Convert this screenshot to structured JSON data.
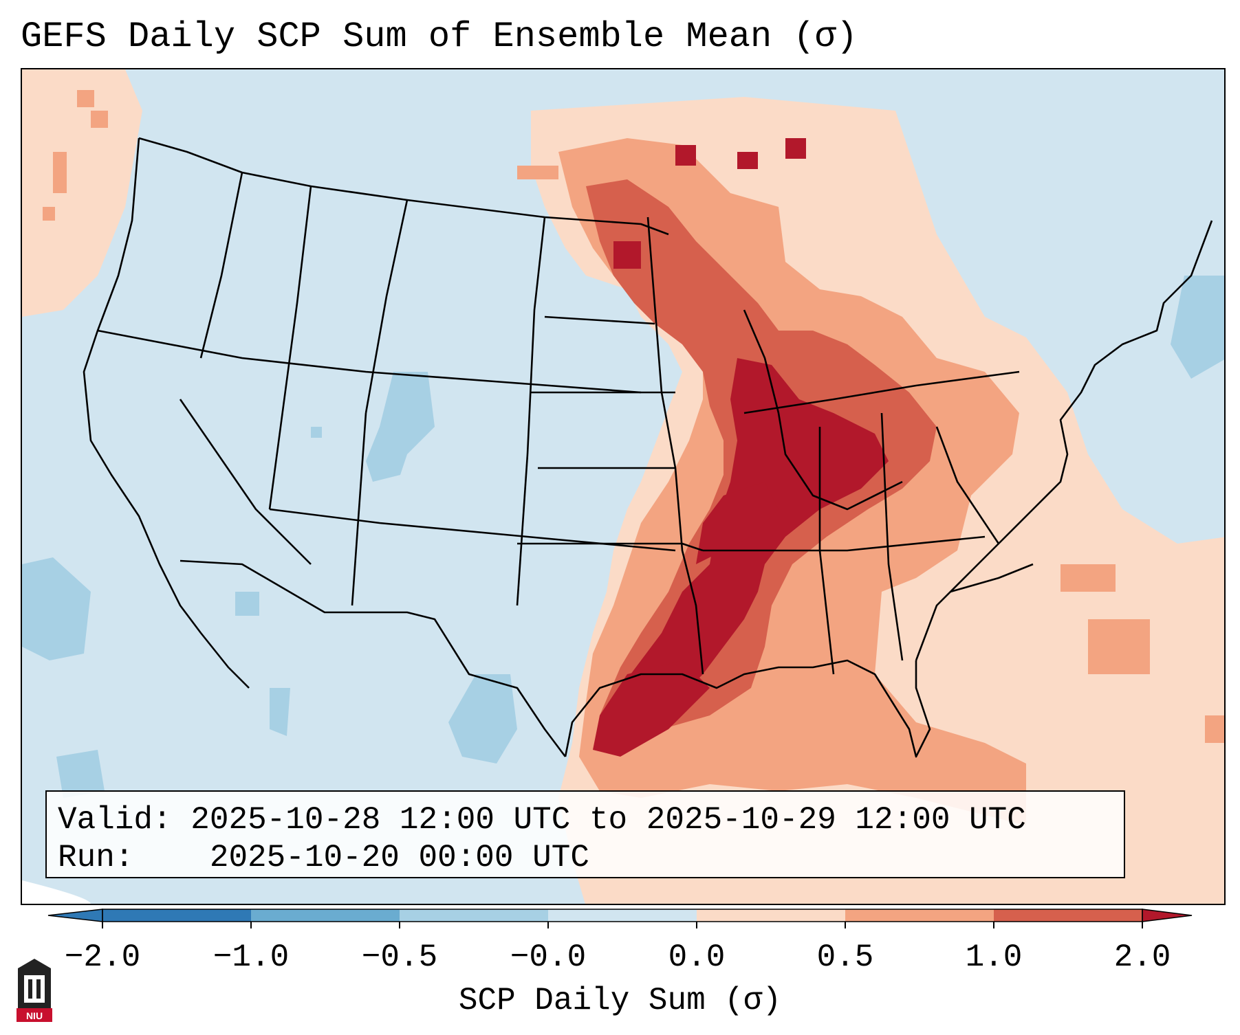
{
  "title": "GEFS Daily SCP Sum of Ensemble Mean (σ)",
  "info": {
    "valid_label": "Valid:",
    "valid_value": "2025-10-28 12:00 UTC to 2025-10-29 12:00 UTC",
    "run_label": "Run:",
    "run_value": "2025-10-20 00:00 UTC"
  },
  "colorbar": {
    "title": "SCP Daily Sum (σ)",
    "ticks": [
      "−2.0",
      "−1.0",
      "−0.5",
      "−0.0",
      "0.0",
      "0.5",
      "1.0",
      "2.0"
    ],
    "colors": [
      "#2f79b5",
      "#6aacd0",
      "#a7d0e4",
      "#d1e5f0",
      "#fbdbc7",
      "#f3a481",
      "#d6604d",
      "#b2182b"
    ],
    "extends": "both"
  },
  "palette": {
    "neg_low": "#d1e5f0",
    "neg_mid": "#a7d0e4",
    "pos_low": "#fbdbc7",
    "pos_mid": "#f3a481",
    "pos_high": "#d6604d",
    "pos_max": "#b2182b"
  },
  "logo": {
    "text": "NIU",
    "color": "#c8102e"
  }
}
